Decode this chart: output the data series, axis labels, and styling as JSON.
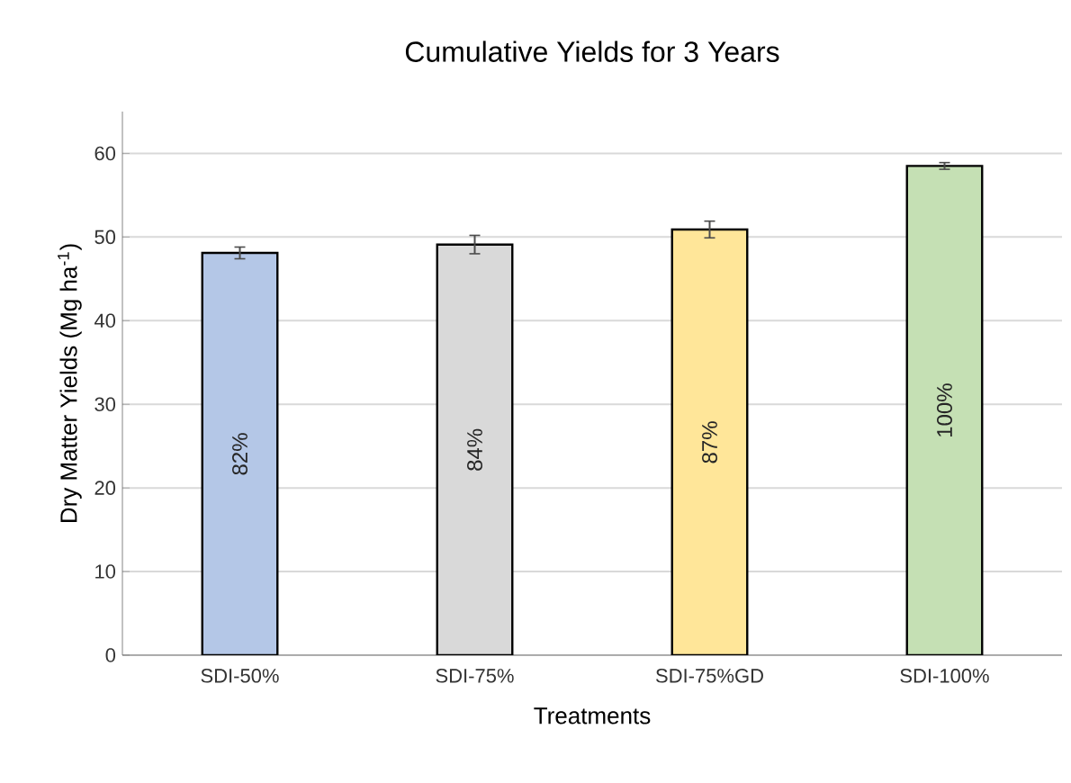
{
  "chart_data": {
    "type": "bar",
    "title": "Cumulative Yields for 3 Years",
    "xlabel": "Treatments",
    "ylabel": "Dry Matter Yields (Mg ha$^{-1}$)",
    "categories": [
      "SDI-50%",
      "SDI-75%",
      "SDI-75%GD",
      "SDI-100%"
    ],
    "values": [
      48.1,
      49.1,
      50.9,
      58.5
    ],
    "errors": [
      0.7,
      1.1,
      1.0,
      0.4
    ],
    "colors": [
      "#b4c7e7",
      "#d9d9d9",
      "#ffe699",
      "#c5e0b4"
    ],
    "annotations": [
      "82%",
      "84%",
      "87%",
      "100%"
    ],
    "ylim": [
      0,
      65
    ],
    "yticks": [
      0,
      10,
      20,
      30,
      40,
      50,
      60
    ],
    "grid": "y"
  }
}
